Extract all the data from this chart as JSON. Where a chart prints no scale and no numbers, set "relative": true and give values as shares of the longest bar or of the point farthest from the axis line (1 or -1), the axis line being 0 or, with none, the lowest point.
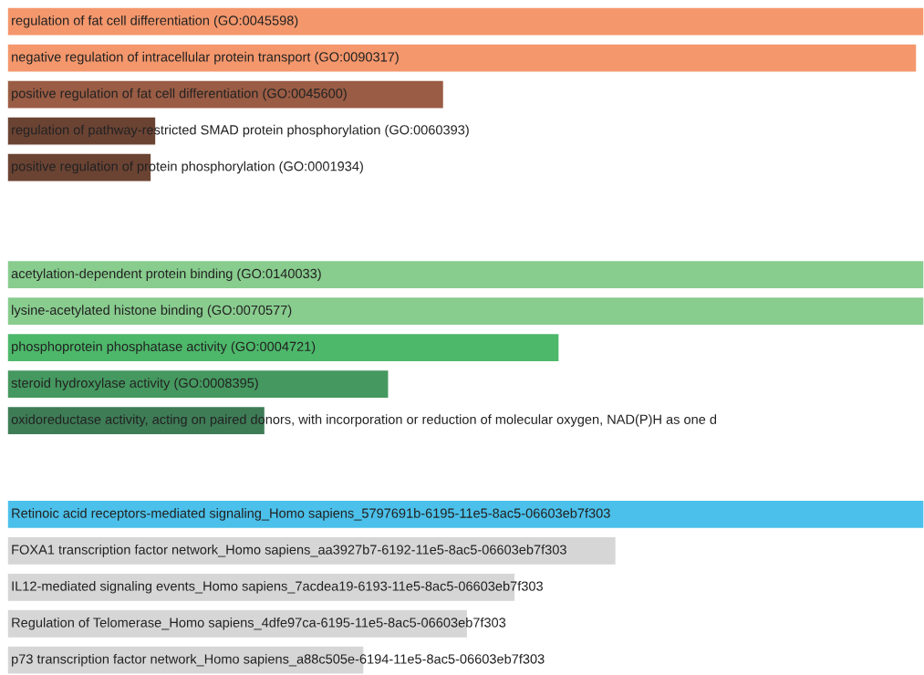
{
  "chart_data": [
    {
      "type": "bar",
      "orientation": "horizontal",
      "relative": true,
      "categories": [
        "regulation of fat cell differentiation (GO:0045598)",
        "negative regulation of intracellular protein transport (GO:0090317)",
        "positive regulation of fat cell differentiation (GO:0045600)",
        "regulation of pathway-restricted SMAD protein phosphorylation (GO:0060393)",
        "positive regulation of protein phosphorylation (GO:0001934)"
      ],
      "values": [
        1,
        0.992,
        0.476,
        0.162,
        0.157
      ],
      "colors": [
        "#f4976c",
        "#f4976c",
        "#9a5c44",
        "#6b4333",
        "#6b4333"
      ]
    },
    {
      "type": "bar",
      "orientation": "horizontal",
      "relative": true,
      "categories": [
        "acetylation-dependent protein binding (GO:0140033)",
        "lysine-acetylated histone binding (GO:0070577)",
        "phosphoprotein phosphatase activity (GO:0004721)",
        "steroid hydroxylase activity (GO:0008395)",
        "oxidoreductase activity, acting on paired donors, with incorporation or reduction of molecular oxygen, NAD(P)H as one d"
      ],
      "values": [
        1,
        1,
        0.602,
        0.416,
        0.281
      ],
      "colors": [
        "#88cc8e",
        "#88cc8e",
        "#4db86a",
        "#45985f",
        "#3e7c56"
      ]
    },
    {
      "type": "bar",
      "orientation": "horizontal",
      "relative": true,
      "categories": [
        "Retinoic acid receptors-mediated signaling_Homo sapiens_5797691b-6195-11e5-8ac5-06603eb7f303",
        "FOXA1 transcription factor network_Homo sapiens_aa3927b7-6192-11e5-8ac5-06603eb7f303",
        "IL12-mediated signaling events_Homo sapiens_7acdea19-6193-11e5-8ac5-06603eb7f303",
        "Regulation of Telomerase_Homo sapiens_4dfe97ca-6195-11e5-8ac5-06603eb7f303",
        "p73 transcription factor network_Homo sapiens_a88c505e-6194-11e5-8ac5-06603eb7f303"
      ],
      "values": [
        1,
        0.664,
        0.554,
        0.502,
        0.389
      ],
      "colors": [
        "#4bc0ea",
        "#d6d6d6",
        "#d6d6d6",
        "#d6d6d6",
        "#d6d6d6"
      ]
    }
  ]
}
